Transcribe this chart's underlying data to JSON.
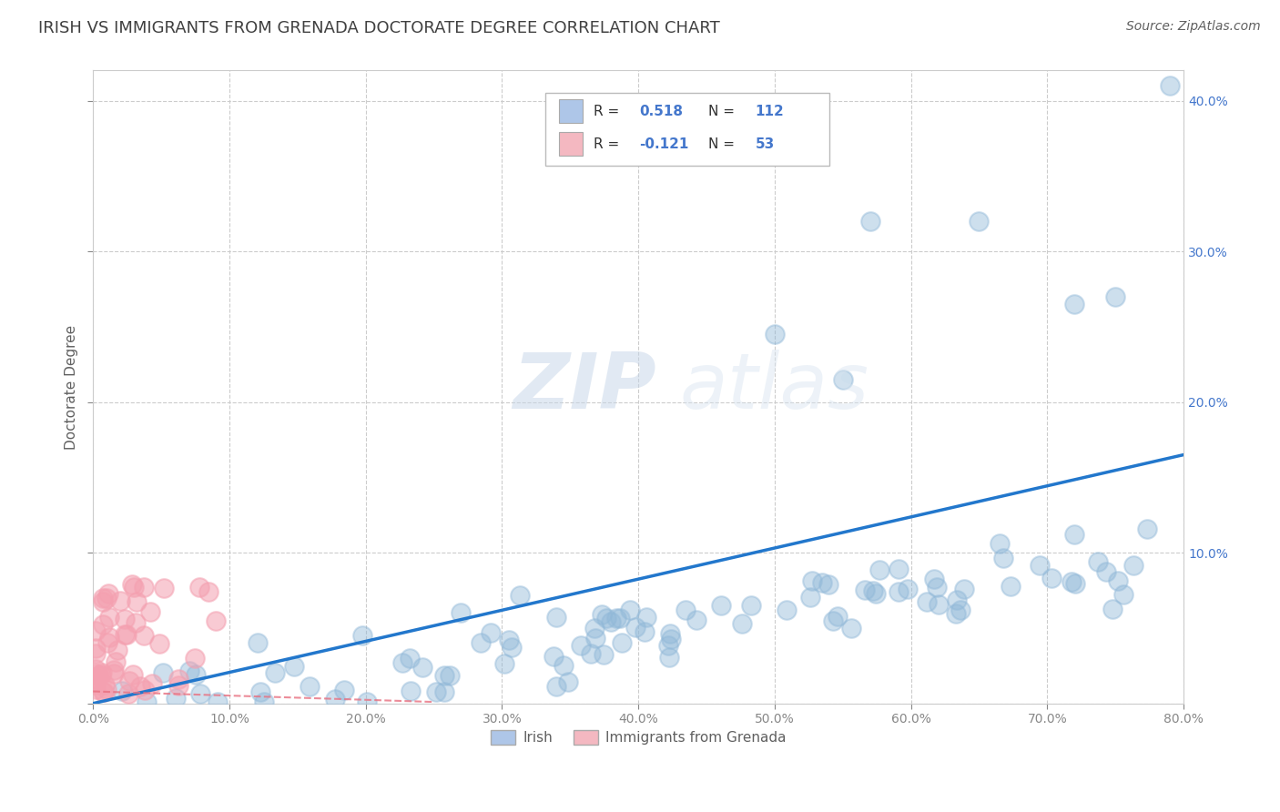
{
  "title": "IRISH VS IMMIGRANTS FROM GRENADA DOCTORATE DEGREE CORRELATION CHART",
  "source_text": "Source: ZipAtlas.com",
  "ylabel": "Doctorate Degree",
  "watermark_zip": "ZIP",
  "watermark_atlas": "atlas",
  "xlim": [
    0.0,
    0.8
  ],
  "ylim": [
    0.0,
    0.42
  ],
  "xticks": [
    0.0,
    0.1,
    0.2,
    0.3,
    0.4,
    0.5,
    0.6,
    0.7,
    0.8
  ],
  "yticks": [
    0.0,
    0.1,
    0.2,
    0.3,
    0.4
  ],
  "xticklabels": [
    "0.0%",
    "10.0%",
    "20.0%",
    "30.0%",
    "40.0%",
    "50.0%",
    "60.0%",
    "70.0%",
    "80.0%"
  ],
  "yticklabels_right": [
    "",
    "10.0%",
    "20.0%",
    "30.0%",
    "40.0%"
  ],
  "figsize": [
    14.06,
    8.92
  ],
  "dpi": 100,
  "irish_color": "#90b8d8",
  "grenada_color": "#f4a0b0",
  "trendline_color": "#2277cc",
  "trendline_grenada_color": "#e87080",
  "legend_blue_color": "#aec6e8",
  "legend_pink_color": "#f4b8c1",
  "r_value_irish": 0.518,
  "n_value_irish": 112,
  "r_value_grenada": -0.121,
  "n_value_grenada": 53,
  "background_color": "#ffffff",
  "grid_color": "#cccccc",
  "tick_color": "#888888",
  "title_color": "#404040",
  "label_color": "#606060",
  "r_text_color": "#4477cc",
  "legend_label_irish": "Irish",
  "legend_label_grenada": "Immigrants from Grenada",
  "title_fontsize": 13,
  "label_fontsize": 11,
  "tick_fontsize": 10,
  "legend_fontsize": 11,
  "source_fontsize": 10,
  "irish_trendline_x": [
    0.0,
    0.8
  ],
  "irish_trendline_y": [
    0.0,
    0.165
  ],
  "grenada_trendline_x": [
    0.0,
    0.25
  ],
  "grenada_trendline_y": [
    0.008,
    0.001
  ]
}
